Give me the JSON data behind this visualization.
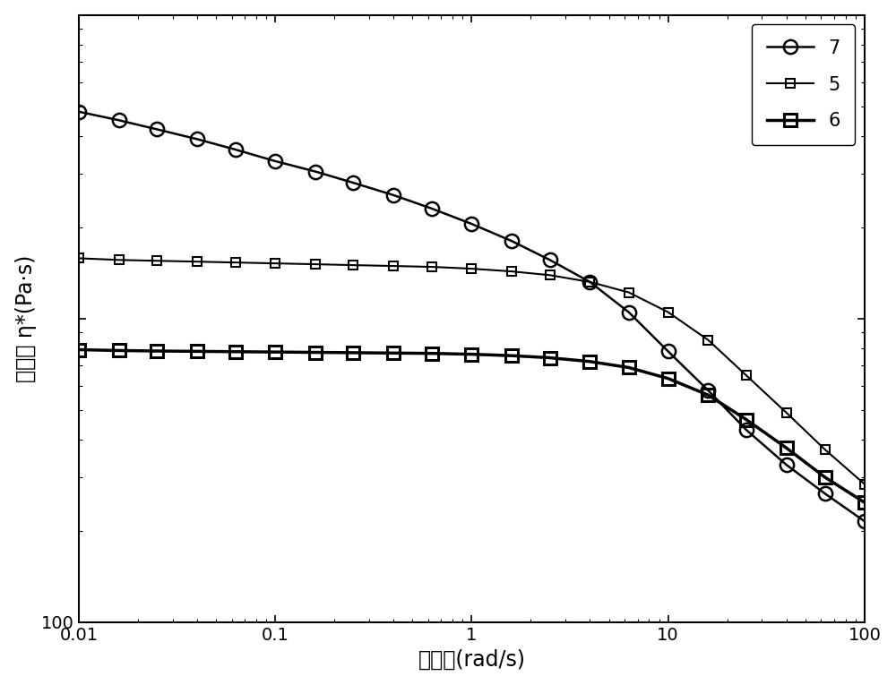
{
  "xlabel": "角频率(rad/s)",
  "ylabel": "复粘度 η*(Pa·s)",
  "background_color": "#ffffff",
  "series": [
    {
      "label": "7",
      "marker": "o",
      "markersize": 11,
      "linewidth": 1.8,
      "color": "#000000",
      "fillstyle": "none",
      "markeredgewidth": 1.8,
      "x": [
        0.01,
        0.016,
        0.025,
        0.04,
        0.063,
        0.1,
        0.16,
        0.25,
        0.4,
        0.63,
        1.0,
        1.6,
        2.5,
        4.0,
        6.3,
        10.0,
        16.0,
        25.0,
        40.0,
        63.0,
        100.0
      ],
      "y": [
        4800,
        4500,
        4200,
        3900,
        3600,
        3300,
        3050,
        2800,
        2550,
        2300,
        2050,
        1800,
        1560,
        1320,
        1050,
        780,
        580,
        430,
        330,
        265,
        215
      ]
    },
    {
      "label": "5",
      "marker": "s",
      "markersize": 7,
      "linewidth": 1.5,
      "color": "#000000",
      "fillstyle": "none",
      "markeredgewidth": 1.5,
      "x": [
        0.01,
        0.016,
        0.025,
        0.04,
        0.063,
        0.1,
        0.16,
        0.25,
        0.4,
        0.63,
        1.0,
        1.6,
        2.5,
        4.0,
        6.3,
        10.0,
        16.0,
        25.0,
        40.0,
        63.0,
        100.0
      ],
      "y": [
        1580,
        1560,
        1550,
        1540,
        1530,
        1520,
        1510,
        1500,
        1490,
        1480,
        1460,
        1430,
        1390,
        1320,
        1220,
        1050,
        850,
        650,
        490,
        370,
        285
      ]
    },
    {
      "label": "6",
      "marker": "s",
      "markersize": 10,
      "linewidth": 2.5,
      "color": "#000000",
      "fillstyle": "none",
      "markeredgewidth": 2.2,
      "x": [
        0.01,
        0.016,
        0.025,
        0.04,
        0.063,
        0.1,
        0.16,
        0.25,
        0.4,
        0.63,
        1.0,
        1.6,
        2.5,
        4.0,
        6.3,
        10.0,
        16.0,
        25.0,
        40.0,
        63.0,
        100.0
      ],
      "y": [
        790,
        785,
        782,
        780,
        778,
        776,
        774,
        772,
        770,
        768,
        763,
        755,
        743,
        722,
        690,
        635,
        560,
        465,
        375,
        300,
        248
      ]
    }
  ],
  "xlim": [
    0.01,
    100
  ],
  "ylim": [
    100,
    10000
  ],
  "legend_loc": "upper right",
  "legend_fontsize": 15,
  "axis_fontsize": 17,
  "tick_fontsize": 14,
  "ytick_labels": {
    "100": "100"
  },
  "xtick_labels": [
    "0.01",
    "0.1",
    "1",
    "10",
    "100"
  ]
}
